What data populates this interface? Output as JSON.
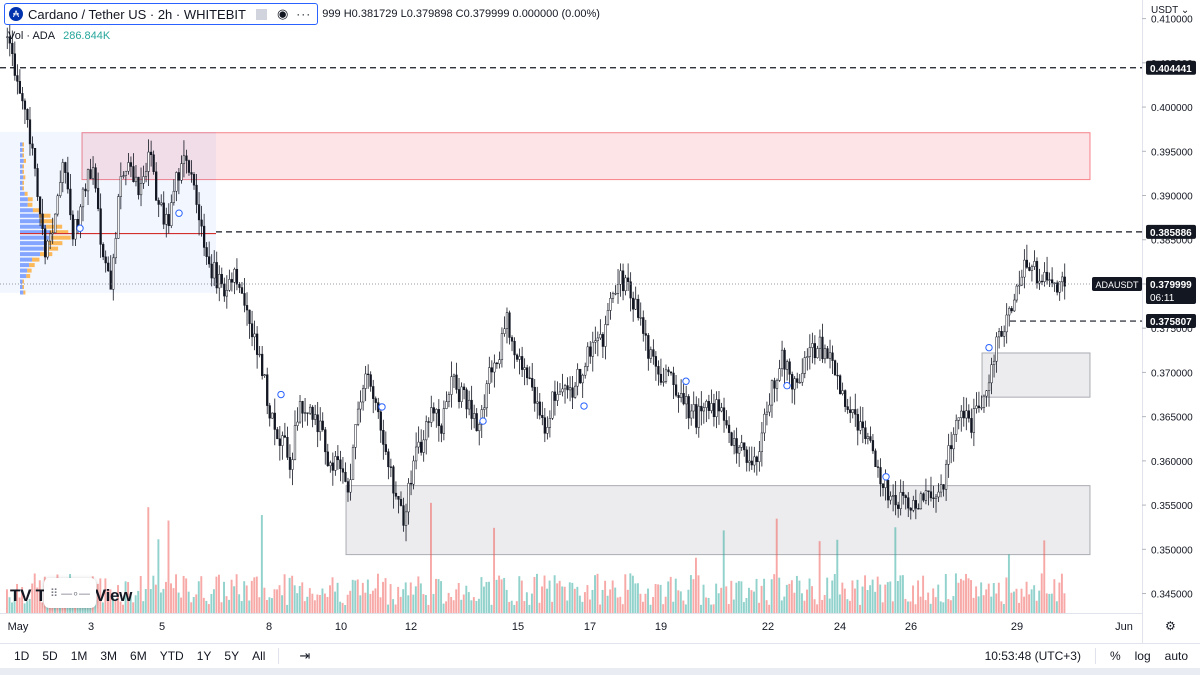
{
  "header": {
    "symbol": "Cardano / Tether US · 2h · WHITEBIT",
    "ohlc": "999 H0.381729 L0.379898 C0.379999 0.000000 (0.00%)",
    "vol_label": "Vol · ADA",
    "vol_value": "286.844K",
    "currency": "USDT"
  },
  "watermark": "TradingView",
  "bottom": {
    "ranges": [
      "1D",
      "5D",
      "1M",
      "3M",
      "6M",
      "YTD",
      "1Y",
      "5Y",
      "All"
    ],
    "time": "10:53:48 (UTC+3)",
    "pct": "%",
    "log": "log",
    "auto": "auto"
  },
  "colors": {
    "up": "#26a69a",
    "down": "#ef5350",
    "supply_zone": "#f23645",
    "demand_zone": "#787b86",
    "poc": "#d32f2f"
  },
  "chart_data": {
    "type": "candlestick",
    "ylim": [
      0.3428,
      0.4112
    ],
    "yticks": [
      "0.410000",
      "0.405000",
      "0.400000",
      "0.395000",
      "0.390000",
      "0.385000",
      "0.380000",
      "0.375000",
      "0.370000",
      "0.365000",
      "0.360000",
      "0.355000",
      "0.350000",
      "0.345000"
    ],
    "xticks": [
      "May",
      "3",
      "5",
      "8",
      "10",
      "12",
      "15",
      "17",
      "19",
      "22",
      "24",
      "26",
      "29",
      "Jun"
    ],
    "price_badges": [
      {
        "label": "ADAUSDT",
        "value": "0.379999",
        "countdown": "06:11"
      },
      {
        "value": "0.404441"
      },
      {
        "value": "0.385886"
      },
      {
        "value": "0.375807"
      }
    ],
    "levels": [
      0.404441,
      0.385886,
      0.375807
    ],
    "last_price": 0.379999,
    "zones": [
      {
        "kind": "resistance",
        "from": 0.3918,
        "to": 0.3971
      },
      {
        "kind": "support",
        "from": 0.3672,
        "to": 0.3722
      },
      {
        "kind": "support",
        "from": 0.3494,
        "to": 0.3572
      }
    ],
    "volume_profile_poc": 0.3857,
    "path": [
      0.4085,
      0.4035,
      0.3995,
      0.3915,
      0.3835,
      0.3875,
      0.3945,
      0.3855,
      0.3895,
      0.3935,
      0.384,
      0.38,
      0.3925,
      0.3945,
      0.389,
      0.396,
      0.389,
      0.387,
      0.392,
      0.395,
      0.389,
      0.3835,
      0.381,
      0.3795,
      0.3815,
      0.3785,
      0.375,
      0.37,
      0.365,
      0.3625,
      0.36,
      0.366,
      0.365,
      0.364,
      0.36,
      0.36,
      0.356,
      0.364,
      0.37,
      0.366,
      0.3625,
      0.356,
      0.3535,
      0.36,
      0.3625,
      0.366,
      0.364,
      0.369,
      0.3675,
      0.366,
      0.364,
      0.37,
      0.372,
      0.376,
      0.3715,
      0.37,
      0.366,
      0.364,
      0.368,
      0.3675,
      0.3685,
      0.37,
      0.374,
      0.373,
      0.378,
      0.3805,
      0.379,
      0.376,
      0.372,
      0.369,
      0.371,
      0.368,
      0.366,
      0.365,
      0.3655,
      0.366,
      0.365,
      0.362,
      0.3605,
      0.359,
      0.364,
      0.368,
      0.372,
      0.369,
      0.37,
      0.372,
      0.373,
      0.372,
      0.369,
      0.366,
      0.364,
      0.362,
      0.36,
      0.357,
      0.356,
      0.3555,
      0.355,
      0.3565,
      0.356,
      0.357,
      0.362,
      0.366,
      0.364,
      0.366,
      0.37,
      0.374,
      0.377,
      0.38,
      0.383,
      0.381,
      0.3805,
      0.38,
      0.38
    ],
    "volume_range": [
      0,
      1
    ]
  }
}
